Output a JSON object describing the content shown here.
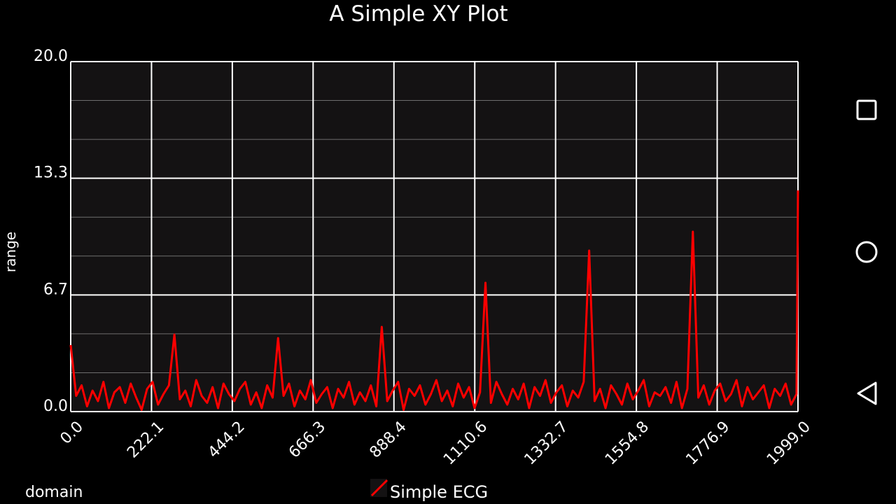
{
  "chart_data": {
    "type": "line",
    "title": "A Simple XY Plot",
    "x_label": "domain",
    "y_label": "range",
    "legend": "bottom",
    "grid": true,
    "xlim": [
      0,
      1999
    ],
    "xticks": [
      {
        "value": 0,
        "label": "0.0"
      },
      222.1,
      444.2,
      666.3,
      888.4,
      1110.6,
      1332.7,
      1554.8,
      1776.9,
      {
        "value": 1999,
        "label": "1999.0"
      }
    ],
    "ylim": [
      0,
      20
    ],
    "yticks": [
      {
        "value": 0,
        "label": "0.0"
      },
      {
        "value": 6.667,
        "label": "6.7"
      },
      {
        "value": 13.333,
        "label": "13.3"
      },
      {
        "value": 20,
        "label": "20.0"
      }
    ],
    "y_minor_ticks": [
      2.222,
      4.444,
      8.889,
      11.111,
      15.556,
      17.778
    ],
    "x": [
      0,
      15,
      30,
      45,
      60,
      75,
      90,
      105,
      120,
      135,
      150,
      165,
      180,
      195,
      210,
      225,
      240,
      255,
      270,
      285,
      300,
      315,
      330,
      345,
      360,
      375,
      390,
      405,
      420,
      435,
      450,
      465,
      480,
      495,
      510,
      525,
      540,
      555,
      570,
      585,
      600,
      615,
      630,
      645,
      660,
      675,
      690,
      705,
      720,
      735,
      750,
      765,
      780,
      795,
      810,
      825,
      840,
      855,
      870,
      885,
      900,
      915,
      930,
      945,
      960,
      975,
      990,
      1005,
      1020,
      1035,
      1050,
      1065,
      1080,
      1095,
      1110,
      1125,
      1140,
      1155,
      1170,
      1185,
      1200,
      1215,
      1230,
      1245,
      1260,
      1275,
      1290,
      1305,
      1320,
      1335,
      1350,
      1365,
      1380,
      1395,
      1410,
      1425,
      1440,
      1455,
      1470,
      1485,
      1500,
      1515,
      1530,
      1545,
      1560,
      1575,
      1590,
      1605,
      1620,
      1635,
      1650,
      1665,
      1680,
      1695,
      1710,
      1725,
      1740,
      1755,
      1770,
      1785,
      1800,
      1815,
      1830,
      1845,
      1860,
      1875,
      1890,
      1905,
      1920,
      1935,
      1950,
      1965,
      1980,
      1995,
      1999
    ],
    "series": [
      {
        "name": "Simple ECG",
        "color": "#ff0000",
        "values": [
          3.8,
          0.9,
          1.5,
          0.3,
          1.2,
          0.6,
          1.7,
          0.2,
          1.1,
          1.4,
          0.5,
          1.6,
          0.8,
          0.1,
          1.3,
          1.7,
          0.4,
          1.0,
          1.5,
          4.4,
          0.7,
          1.2,
          0.3,
          1.8,
          0.9,
          0.5,
          1.4,
          0.2,
          1.6,
          1.0,
          0.6,
          1.3,
          1.7,
          0.4,
          1.1,
          0.2,
          1.5,
          0.8,
          4.2,
          0.9,
          1.6,
          0.3,
          1.2,
          0.7,
          1.8,
          0.5,
          1.0,
          1.4,
          0.2,
          1.3,
          0.8,
          1.7,
          0.4,
          1.1,
          0.6,
          1.5,
          0.3,
          4.84,
          0.6,
          1.2,
          1.7,
          0.1,
          1.3,
          0.9,
          1.5,
          0.4,
          1.0,
          1.8,
          0.6,
          1.2,
          0.3,
          1.6,
          0.8,
          1.4,
          0.2,
          1.1,
          7.36,
          0.5,
          1.7,
          1.0,
          0.4,
          1.3,
          0.7,
          1.6,
          0.2,
          1.4,
          0.9,
          1.8,
          0.5,
          1.1,
          1.5,
          0.3,
          1.2,
          0.8,
          1.7,
          9.2,
          0.6,
          1.3,
          0.2,
          1.5,
          1.0,
          0.4,
          1.6,
          0.7,
          1.2,
          1.8,
          0.3,
          1.1,
          0.9,
          1.4,
          0.5,
          1.7,
          0.2,
          1.3,
          10.28,
          0.8,
          1.5,
          0.4,
          1.2,
          1.6,
          0.6,
          1.0,
          1.8,
          0.3,
          1.4,
          0.7,
          1.1,
          1.5,
          0.2,
          1.3,
          0.9,
          1.6,
          0.4,
          1.0,
          12.64
        ]
      }
    ]
  }
}
